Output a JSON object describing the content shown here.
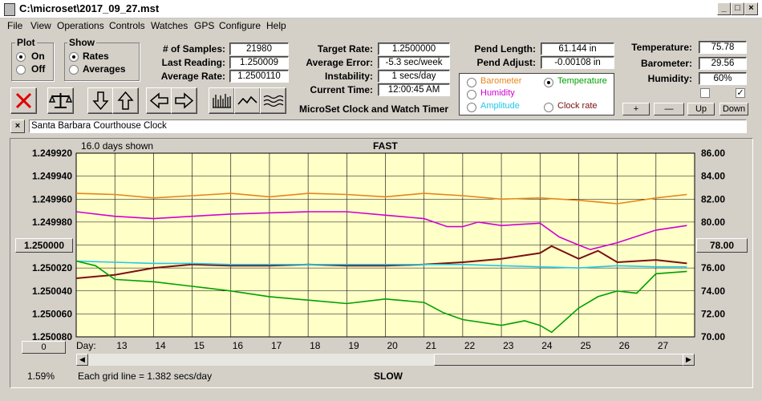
{
  "window": {
    "title": "C:\\microset\\2017_09_27.mst"
  },
  "menu": [
    "File",
    "View",
    "Operations",
    "Controls",
    "Watches",
    "GPS",
    "Configure",
    "Help"
  ],
  "plot_group": {
    "title": "Plot",
    "on": "On",
    "off": "Off",
    "selected": "On"
  },
  "show_group": {
    "title": "Show",
    "rates": "Rates",
    "averages": "Averages",
    "selected": "Rates"
  },
  "stats": {
    "samples_label": "# of Samples:",
    "samples": "21980",
    "last_label": "Last Reading:",
    "last": "1.250009",
    "avg_label": "Average Rate:",
    "avg": "1.2500110",
    "target_label": "Target Rate:",
    "target": "1.2500000",
    "err_label": "Average Error:",
    "err": "-5.3 sec/week",
    "inst_label": "Instability:",
    "inst": "1 secs/day",
    "time_label": "Current Time:",
    "time": "12:00:45 AM",
    "pendlen_label": "Pend Length:",
    "pendlen": "61.144 in",
    "pendadj_label": "Pend Adjust:",
    "pendadj": "-0.00108 in",
    "temp_label": "Temperature:",
    "temp": "75.78",
    "baro_label": "Barometer:",
    "baro": "29.56",
    "hum_label": "Humidity:",
    "hum": "60%"
  },
  "product_title": "MicroSet Clock and Watch Timer",
  "sensor_options": [
    {
      "label": "Barometer",
      "color": "#e8841c",
      "selected": false
    },
    {
      "label": "Temperature",
      "color": "#00a000",
      "selected": true
    },
    {
      "label": "Humidity",
      "color": "#d200d2",
      "selected": false
    },
    {
      "label": "Clock rate",
      "color": "#7a1010",
      "selected": false
    },
    {
      "label": "Amplitude",
      "color": "#20c8e8",
      "selected": false
    }
  ],
  "sensor_checks": [
    {
      "checked": false
    },
    {
      "checked": true
    }
  ],
  "sensor_buttons": {
    "plus": "+",
    "minus": "—",
    "up": "Up",
    "down": "Down"
  },
  "note": {
    "close": "×",
    "text": "Santa Barbara Courthouse Clock"
  },
  "chart_header": {
    "days_shown": "16.0 days shown",
    "fast": "FAST",
    "slow": "SLOW",
    "grid": "Each grid line = 1.382 secs/day",
    "percent": "1.59%"
  },
  "left_controls": {
    "center_value": "1.250000",
    "bottom_value": "0"
  },
  "right_controls": {
    "center_value": "78.00"
  },
  "toolbar_icons": [
    "clear-icon",
    "balance-icon",
    "arrow-down-icon",
    "arrow-up-icon",
    "arrow-left-icon",
    "arrow-right-icon",
    "bars-icon",
    "wave-icon",
    "waves-icon"
  ],
  "chart_data": {
    "type": "line",
    "xlabel": "Day:",
    "x_ticks": [
      "13",
      "14",
      "15",
      "16",
      "17",
      "18",
      "19",
      "20",
      "21",
      "22",
      "23",
      "24",
      "25",
      "26",
      "27"
    ],
    "x_range": [
      12,
      28
    ],
    "left_axis": {
      "ticks": [
        "1.249920",
        "1.249940",
        "1.249960",
        "1.249980",
        "1.250000",
        "1.250020",
        "1.250040",
        "1.250060",
        "1.250080"
      ],
      "range": [
        1.24992,
        1.25008
      ],
      "inverted": true
    },
    "right_axis": {
      "ticks": [
        "86.00",
        "84.00",
        "82.00",
        "80.00",
        "78.00",
        "76.00",
        "74.00",
        "72.00",
        "70.00"
      ],
      "range": [
        70,
        86
      ]
    },
    "grid": true,
    "series": [
      {
        "name": "Barometer",
        "color": "#e8841c",
        "x": [
          12,
          13,
          14,
          15,
          16,
          17,
          18,
          19,
          20,
          21,
          22,
          23,
          24,
          25,
          26,
          27,
          27.8
        ],
        "y": [
          82.5,
          82.4,
          82.1,
          82.3,
          82.5,
          82.2,
          82.5,
          82.4,
          82.2,
          82.5,
          82.3,
          82.0,
          82.1,
          81.9,
          81.6,
          82.1,
          82.4
        ]
      },
      {
        "name": "Humidity",
        "color": "#d200d2",
        "x": [
          12,
          13,
          14,
          15,
          16,
          17,
          18,
          19,
          20,
          21,
          21.6,
          22,
          22.4,
          23,
          24,
          24.5,
          25,
          25.3,
          26,
          27,
          27.8
        ],
        "y": [
          80.9,
          80.5,
          80.3,
          80.5,
          80.7,
          80.8,
          80.9,
          80.9,
          80.6,
          80.3,
          79.6,
          79.6,
          80.0,
          79.7,
          79.9,
          78.7,
          78.0,
          77.6,
          78.2,
          79.3,
          79.7
        ]
      },
      {
        "name": "Clock rate",
        "color": "#7a1010",
        "x": [
          12,
          13,
          14,
          15,
          16,
          17,
          18,
          19,
          20,
          21,
          22,
          23,
          24,
          24.3,
          25,
          25.5,
          26,
          27,
          27.8
        ],
        "y": [
          1.250029,
          1.250026,
          1.25002,
          1.250017,
          1.250018,
          1.250018,
          1.250017,
          1.250018,
          1.250018,
          1.250017,
          1.250015,
          1.250012,
          1.250007,
          1.250001,
          1.250012,
          1.250005,
          1.250015,
          1.250013,
          1.250016
        ]
      },
      {
        "name": "Amplitude",
        "color": "#20c8e8",
        "x": [
          12,
          13,
          14,
          15,
          16,
          17,
          18,
          19,
          20,
          21,
          22,
          23,
          24,
          25,
          26,
          27,
          27.8
        ],
        "y": [
          76.6,
          76.5,
          76.4,
          76.4,
          76.3,
          76.3,
          76.3,
          76.3,
          76.3,
          76.3,
          76.3,
          76.2,
          76.1,
          76.0,
          76.2,
          76.1,
          76.1
        ]
      },
      {
        "name": "Temperature",
        "color": "#00a000",
        "x": [
          12,
          12.5,
          13,
          14,
          15,
          16,
          17,
          18,
          19,
          20,
          21,
          21.5,
          22,
          23,
          23.6,
          24,
          24.3,
          25,
          25.5,
          26,
          26.5,
          27,
          27.8
        ],
        "y": [
          76.6,
          76.2,
          75.0,
          74.8,
          74.4,
          74.0,
          73.5,
          73.2,
          72.9,
          73.3,
          73.0,
          72.1,
          71.5,
          71.0,
          71.4,
          71.0,
          70.4,
          72.5,
          73.5,
          74.0,
          73.8,
          75.5,
          75.7
        ]
      }
    ]
  }
}
